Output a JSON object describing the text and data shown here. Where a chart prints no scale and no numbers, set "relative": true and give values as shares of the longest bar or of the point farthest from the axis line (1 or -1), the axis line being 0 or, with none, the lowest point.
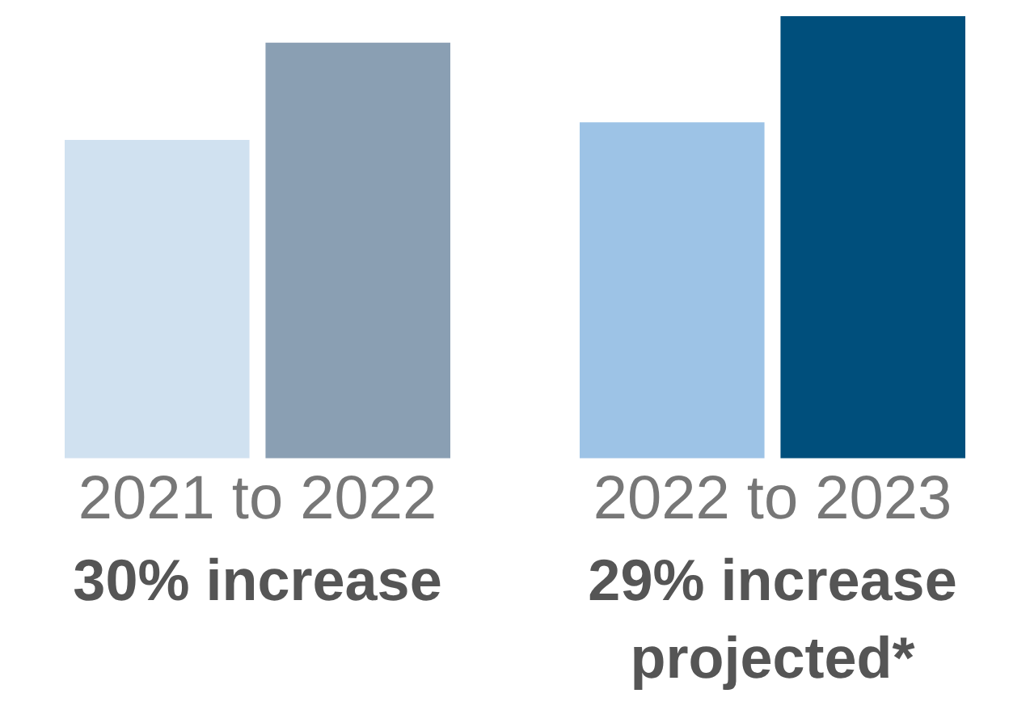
{
  "chart_data": {
    "type": "bar",
    "relative": true,
    "categories": [
      "2021 to 2022",
      "2022 to 2023"
    ],
    "series": [
      {
        "colors": [
          "#d0e1f0",
          "#9dc3e6"
        ],
        "values": [
          0.72,
          0.76
        ]
      },
      {
        "colors": [
          "#8a9fb3",
          "#004f7c"
        ],
        "values": [
          0.94,
          1.0
        ]
      }
    ],
    "annotations": [
      "30% increase",
      "29% increase projected*"
    ],
    "legend": false,
    "grid": false
  }
}
